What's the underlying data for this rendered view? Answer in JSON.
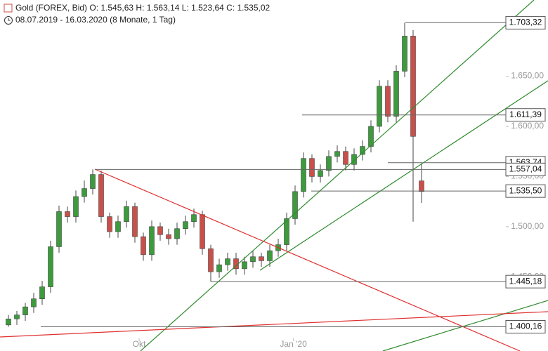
{
  "header": {
    "line1": "Gold (FOREX, Bid)  O: 1.545,63  H: 1.563,14  L: 1.523,64  C: 1.535,02",
    "line2": "08.07.2019 - 16.03.2020  (8 Monate, 1 Tag)"
  },
  "chart_data": {
    "type": "candlestick",
    "xlim": [
      -1,
      59
    ],
    "ylim": [
      1376,
      1726
    ],
    "xticks": [
      {
        "value": 15.5,
        "label": "Okt"
      },
      {
        "value": 33.8,
        "label": "Jan '20"
      }
    ],
    "yticks": [
      {
        "value": 1650,
        "label": "1.650,00"
      },
      {
        "value": 1600,
        "label": "1.600,00"
      },
      {
        "value": 1550,
        "label": "1.550,00"
      },
      {
        "value": 1500,
        "label": "1.500,00"
      },
      {
        "value": 1450,
        "label": "1.450,00"
      }
    ],
    "up_color": "#3d9a3d",
    "down_color": "#c9504a",
    "open": [
      1402,
      1408,
      1412,
      1420,
      1428,
      1440,
      1480,
      1515,
      1510,
      1530,
      1538,
      1552,
      1510,
      1495,
      1505,
      1520,
      1490,
      1472,
      1500,
      1492,
      1488,
      1498,
      1505,
      1512,
      1478,
      1455,
      1462,
      1468,
      1458,
      1465,
      1470,
      1466,
      1476,
      1482,
      1508,
      1535,
      1568,
      1550,
      1556,
      1570,
      1575,
      1562,
      1572,
      1580,
      1600,
      1640,
      1610,
      1655,
      1690,
      1545.63
    ],
    "high": [
      1412,
      1416,
      1424,
      1434,
      1446,
      1486,
      1521,
      1520,
      1536,
      1546,
      1557,
      1556,
      1514,
      1511,
      1526,
      1524,
      1494,
      1506,
      1504,
      1498,
      1504,
      1511,
      1518,
      1516,
      1482,
      1468,
      1474,
      1474,
      1470,
      1476,
      1474,
      1482,
      1488,
      1514,
      1541,
      1574,
      1572,
      1562,
      1576,
      1581,
      1580,
      1578,
      1586,
      1606,
      1646,
      1646,
      1661,
      1703.32,
      1696,
      1563.14
    ],
    "low": [
      1400.16,
      1402,
      1406,
      1414,
      1422,
      1434,
      1474,
      1504,
      1504,
      1524,
      1532,
      1504,
      1489,
      1489,
      1499,
      1484,
      1466,
      1466,
      1486,
      1482,
      1482,
      1492,
      1499,
      1472,
      1445.18,
      1449,
      1456,
      1452,
      1452,
      1459,
      1460,
      1460,
      1470,
      1476,
      1502,
      1529,
      1544,
      1544,
      1550,
      1564,
      1556,
      1556,
      1566,
      1574,
      1594,
      1604,
      1604,
      1649,
      1505,
      1523.64
    ],
    "close": [
      1408,
      1412,
      1420,
      1428,
      1440,
      1480,
      1515,
      1510,
      1530,
      1538,
      1552,
      1510,
      1495,
      1505,
      1520,
      1490,
      1472,
      1500,
      1492,
      1488,
      1498,
      1505,
      1512,
      1478,
      1455,
      1462,
      1468,
      1458,
      1465,
      1470,
      1466,
      1476,
      1482,
      1508,
      1535,
      1568,
      1550,
      1556,
      1570,
      1575,
      1562,
      1572,
      1580,
      1600,
      1640,
      1610,
      1655,
      1690,
      1590,
      1535.02
    ],
    "levels": [
      {
        "value": 1703.32,
        "label": "1.703,32"
      },
      {
        "value": 1611.39,
        "label": "1.611,39"
      },
      {
        "value": 1563.74,
        "label": "1.563,74"
      },
      {
        "value": 1557.04,
        "label": "1.557,04"
      },
      {
        "value": 1535.5,
        "label": "1.535,50"
      },
      {
        "value": 1445.18,
        "label": "1.445,18"
      },
      {
        "value": 1400.16,
        "label": "1.400,16"
      }
    ]
  }
}
